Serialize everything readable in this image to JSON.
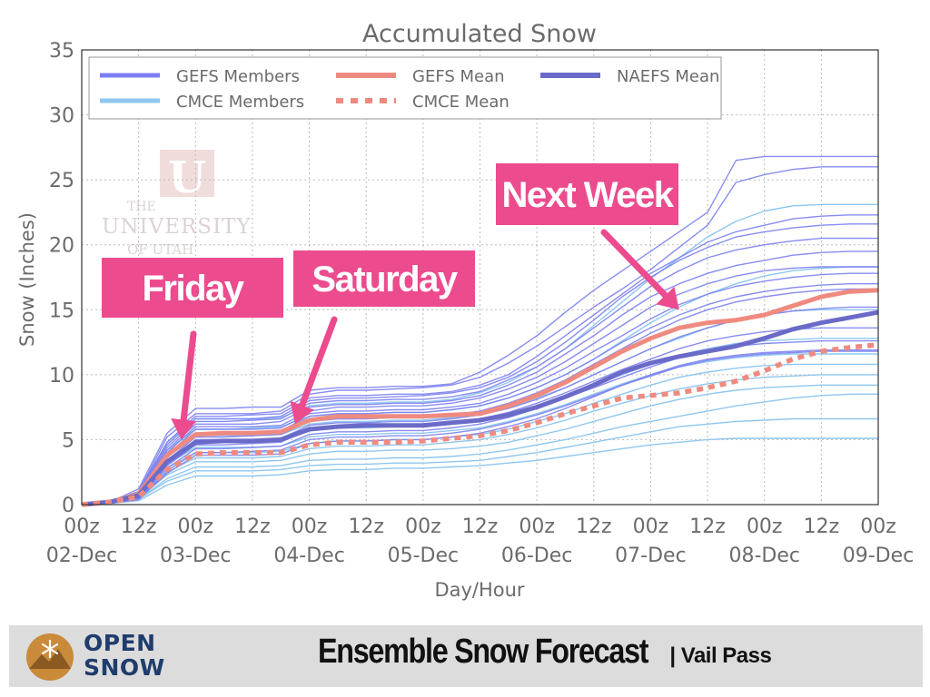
{
  "chart_data": {
    "type": "line",
    "title": "Accumulated Snow",
    "xlabel": "Day/Hour",
    "ylabel": "Snow (Inches)",
    "ylim": [
      0,
      35
    ],
    "yticks": [
      0,
      5,
      10,
      15,
      20,
      25,
      30,
      35
    ],
    "x_tick_hours": [
      "00z",
      "12z",
      "00z",
      "12z",
      "00z",
      "12z",
      "00z",
      "12z",
      "00z",
      "12z",
      "00z",
      "12z",
      "00z",
      "12z",
      "00z"
    ],
    "x_tick_days": [
      "02-Dec",
      "03-Dec",
      "04-Dec",
      "05-Dec",
      "06-Dec",
      "07-Dec",
      "08-Dec",
      "09-Dec"
    ],
    "x_time_hours_start": 0,
    "x_time_hours_end": 168,
    "grid": true,
    "legend_position": "top",
    "legend": [
      {
        "label": "GEFS Members",
        "style": "line",
        "color": "#7b7ff0"
      },
      {
        "label": "GEFS Mean",
        "style": "line",
        "color": "#ef8a80"
      },
      {
        "label": "NAEFS Mean",
        "style": "line",
        "color": "#6a6ac8"
      },
      {
        "label": "CMCE Members",
        "style": "line",
        "color": "#8fc7f0"
      },
      {
        "label": "CMCE Mean",
        "style": "dotted",
        "color": "#ef8a80"
      }
    ],
    "x_hours": [
      0,
      6,
      12,
      18,
      24,
      30,
      36,
      42,
      48,
      54,
      60,
      66,
      72,
      78,
      84,
      90,
      96,
      102,
      108,
      114,
      120,
      126,
      132,
      138,
      144,
      150,
      156,
      162,
      168
    ],
    "series": [
      {
        "name": "GEFS Mean",
        "color": "#ef8a80",
        "style": "solid",
        "values": [
          0,
          0.2,
          0.8,
          3.8,
          5.4,
          5.5,
          5.5,
          5.6,
          6.5,
          6.8,
          6.8,
          6.8,
          6.8,
          6.9,
          7.0,
          7.6,
          8.4,
          9.4,
          10.6,
          11.8,
          12.8,
          13.6,
          14.0,
          14.2,
          14.6,
          15.3,
          16.0,
          16.4,
          16.5
        ]
      },
      {
        "name": "NAEFS Mean",
        "color": "#6a6ac8",
        "style": "solid",
        "values": [
          0,
          0.2,
          0.7,
          3.3,
          4.8,
          4.9,
          4.9,
          5.0,
          5.8,
          6.0,
          6.1,
          6.1,
          6.1,
          6.3,
          6.5,
          6.9,
          7.5,
          8.3,
          9.2,
          10.2,
          10.9,
          11.4,
          11.8,
          12.2,
          12.8,
          13.5,
          14.0,
          14.4,
          14.8
        ]
      },
      {
        "name": "CMCE Mean",
        "color": "#ef8a80",
        "style": "dotted",
        "values": [
          0,
          0.2,
          0.6,
          2.7,
          3.9,
          4.0,
          4.0,
          4.0,
          4.6,
          4.8,
          4.8,
          4.8,
          4.9,
          5.1,
          5.3,
          5.7,
          6.3,
          7.0,
          7.6,
          8.2,
          8.4,
          8.6,
          9.0,
          9.5,
          10.3,
          11.2,
          11.8,
          12.1,
          12.3
        ]
      }
    ],
    "members_gefs": [
      [
        0,
        0.2,
        1.2,
        5.5,
        7.4,
        7.4,
        7.5,
        7.5,
        8.8,
        9.0,
        9.0,
        9.1,
        9.1,
        9.3,
        10.2,
        11.5,
        13.0,
        14.8,
        16.5,
        18.0,
        19.5,
        21.0,
        22.5,
        26.5,
        26.8,
        26.8,
        26.8,
        26.8,
        26.8
      ],
      [
        0,
        0.2,
        1.0,
        5.2,
        7.0,
        7.0,
        7.0,
        7.2,
        8.5,
        8.8,
        8.8,
        8.9,
        9.0,
        9.2,
        9.8,
        10.9,
        12.2,
        13.7,
        15.2,
        16.6,
        18.1,
        19.8,
        21.5,
        24.8,
        25.4,
        25.8,
        26.0,
        26.0,
        26.0
      ],
      [
        0,
        0.2,
        1.0,
        4.8,
        6.8,
        6.8,
        6.9,
        7.0,
        8.2,
        8.4,
        8.4,
        8.5,
        8.5,
        8.7,
        9.2,
        10.0,
        11.4,
        13.0,
        14.6,
        16.2,
        17.8,
        19.0,
        20.2,
        21.0,
        21.5,
        22.0,
        22.2,
        22.3,
        22.3
      ],
      [
        0,
        0.2,
        0.9,
        4.6,
        6.6,
        6.6,
        6.6,
        6.8,
        8.0,
        8.2,
        8.2,
        8.3,
        8.4,
        8.6,
        9.0,
        9.8,
        11.0,
        12.5,
        14.2,
        16.0,
        17.5,
        18.8,
        19.8,
        20.6,
        21.0,
        21.3,
        21.5,
        21.6,
        21.6
      ],
      [
        0,
        0.2,
        0.9,
        4.4,
        6.4,
        6.4,
        6.5,
        6.6,
        7.8,
        8.0,
        8.0,
        8.1,
        8.1,
        8.3,
        8.7,
        9.6,
        10.6,
        12.0,
        13.6,
        15.2,
        16.8,
        18.0,
        19.0,
        19.6,
        20.0,
        20.3,
        20.5,
        20.5,
        20.5
      ],
      [
        0,
        0.2,
        0.8,
        4.2,
        6.2,
        6.2,
        6.2,
        6.4,
        7.5,
        7.7,
        7.7,
        7.8,
        7.8,
        8.0,
        8.4,
        9.2,
        10.2,
        11.6,
        13.0,
        14.6,
        16.0,
        17.0,
        17.8,
        18.4,
        18.8,
        19.2,
        19.4,
        19.5,
        19.5
      ],
      [
        0,
        0.2,
        0.8,
        4.0,
        6.0,
        6.0,
        6.0,
        6.1,
        7.2,
        7.5,
        7.5,
        7.6,
        7.6,
        7.8,
        8.2,
        8.9,
        9.8,
        11.0,
        12.4,
        13.8,
        15.2,
        16.2,
        17.0,
        17.6,
        18.0,
        18.2,
        18.3,
        18.3,
        18.3
      ],
      [
        0,
        0.2,
        0.7,
        3.8,
        5.8,
        5.8,
        5.8,
        5.9,
        7.0,
        7.2,
        7.2,
        7.3,
        7.3,
        7.5,
        7.8,
        8.5,
        9.4,
        10.5,
        11.8,
        13.0,
        14.3,
        15.4,
        16.2,
        16.8,
        17.2,
        17.5,
        17.7,
        17.8,
        17.8
      ],
      [
        0,
        0.2,
        0.7,
        3.6,
        5.5,
        5.5,
        5.6,
        5.7,
        6.8,
        7.0,
        7.0,
        7.1,
        7.1,
        7.3,
        7.6,
        8.2,
        9.0,
        10.0,
        11.2,
        12.5,
        13.6,
        14.6,
        15.4,
        16.0,
        16.4,
        16.7,
        16.9,
        17.0,
        17.0
      ],
      [
        0,
        0.1,
        0.6,
        3.4,
        5.2,
        5.2,
        5.3,
        5.4,
        6.4,
        6.6,
        6.6,
        6.7,
        6.7,
        6.9,
        7.2,
        7.8,
        8.6,
        9.6,
        10.8,
        12.0,
        13.2,
        14.2,
        15.0,
        15.6,
        16.0,
        16.3,
        16.5,
        16.6,
        16.6
      ],
      [
        0,
        0.1,
        0.6,
        3.2,
        5.0,
        5.0,
        5.0,
        5.1,
        6.1,
        6.3,
        6.3,
        6.4,
        6.4,
        6.6,
        6.9,
        7.4,
        8.1,
        9.0,
        10.0,
        11.0,
        12.0,
        12.9,
        13.6,
        14.2,
        14.6,
        14.9,
        15.1,
        15.2,
        15.2
      ],
      [
        0,
        0.1,
        0.5,
        3.0,
        4.6,
        4.6,
        4.7,
        4.8,
        5.8,
        6.0,
        6.0,
        6.1,
        6.1,
        6.3,
        6.6,
        7.1,
        7.8,
        8.6,
        9.5,
        10.4,
        11.2,
        12.0,
        12.6,
        13.0,
        13.3,
        13.5,
        13.6,
        13.6,
        13.6
      ],
      [
        0,
        0.1,
        0.5,
        2.8,
        4.3,
        4.3,
        4.4,
        4.5,
        5.4,
        5.6,
        5.6,
        5.7,
        5.7,
        5.9,
        6.2,
        6.7,
        7.4,
        8.2,
        9.0,
        9.8,
        10.6,
        11.3,
        11.8,
        12.2,
        12.4,
        12.5,
        12.6,
        12.6,
        12.6
      ],
      [
        0,
        0.1,
        0.4,
        2.6,
        4.0,
        4.0,
        4.1,
        4.2,
        5.0,
        5.2,
        5.2,
        5.3,
        5.3,
        5.5,
        5.8,
        6.3,
        6.9,
        7.6,
        8.4,
        9.2,
        9.9,
        10.6,
        11.1,
        11.4,
        11.6,
        11.7,
        11.8,
        11.8,
        11.8
      ],
      [
        0,
        0.1,
        0.4,
        2.4,
        3.8,
        3.8,
        3.8,
        3.9,
        4.7,
        4.9,
        4.9,
        5.0,
        5.0,
        5.2,
        5.5,
        6.0,
        6.6,
        7.4,
        8.3,
        9.2,
        10.0,
        10.7,
        11.2,
        11.5,
        11.7,
        11.8,
        11.9,
        11.9,
        11.9
      ]
    ],
    "members_cmce": [
      [
        0,
        0.2,
        1.0,
        4.8,
        6.6,
        6.6,
        6.6,
        6.7,
        7.6,
        7.8,
        7.8,
        7.9,
        7.9,
        8.1,
        8.6,
        9.4,
        10.6,
        12.0,
        13.8,
        15.6,
        17.4,
        19.0,
        20.6,
        21.8,
        22.6,
        23.0,
        23.1,
        23.1,
        23.1
      ],
      [
        0,
        0.2,
        0.9,
        4.2,
        5.8,
        5.8,
        5.9,
        6.0,
        6.8,
        7.0,
        7.0,
        7.1,
        7.1,
        7.3,
        7.6,
        8.2,
        9.0,
        10.0,
        11.2,
        12.6,
        14.0,
        15.2,
        16.2,
        17.0,
        17.6,
        18.0,
        18.2,
        18.3,
        18.3
      ],
      [
        0,
        0.2,
        0.8,
        3.8,
        5.3,
        5.3,
        5.3,
        5.4,
        6.2,
        6.4,
        6.4,
        6.5,
        6.5,
        6.7,
        7.0,
        7.5,
        8.2,
        9.0,
        10.0,
        11.0,
        12.0,
        12.8,
        13.6,
        14.2,
        14.6,
        14.9,
        15.0,
        15.0,
        15.0
      ],
      [
        0,
        0.1,
        0.7,
        3.4,
        4.8,
        4.8,
        4.9,
        5.0,
        5.7,
        5.9,
        5.9,
        6.0,
        6.0,
        6.2,
        6.5,
        7.0,
        7.6,
        8.4,
        9.2,
        10.0,
        10.8,
        11.5,
        12.0,
        12.4,
        12.6,
        12.7,
        12.8,
        12.8,
        12.8
      ],
      [
        0,
        0.1,
        0.6,
        3.1,
        4.4,
        4.4,
        4.4,
        4.5,
        5.2,
        5.4,
        5.4,
        5.5,
        5.5,
        5.7,
        5.9,
        6.4,
        7.0,
        7.7,
        8.5,
        9.3,
        10.0,
        10.6,
        11.0,
        11.3,
        11.5,
        11.6,
        11.6,
        11.6,
        11.6
      ],
      [
        0,
        0.1,
        0.6,
        2.8,
        4.0,
        4.0,
        4.0,
        4.1,
        4.7,
        4.9,
        4.9,
        5.0,
        5.0,
        5.2,
        5.4,
        5.8,
        6.4,
        7.0,
        7.8,
        8.5,
        9.2,
        9.8,
        10.2,
        10.5,
        10.7,
        10.8,
        10.8,
        10.8,
        10.8
      ],
      [
        0,
        0.1,
        0.5,
        2.5,
        3.6,
        3.6,
        3.6,
        3.7,
        4.3,
        4.5,
        4.5,
        4.6,
        4.6,
        4.8,
        5.0,
        5.4,
        5.9,
        6.5,
        7.2,
        7.8,
        8.4,
        8.9,
        9.3,
        9.6,
        9.8,
        9.9,
        10.0,
        10.0,
        10.0
      ],
      [
        0,
        0.1,
        0.5,
        2.3,
        3.3,
        3.3,
        3.3,
        3.4,
        3.9,
        4.1,
        4.1,
        4.2,
        4.2,
        4.3,
        4.5,
        4.8,
        5.3,
        5.8,
        6.4,
        7.0,
        7.6,
        8.1,
        8.5,
        8.8,
        9.0,
        9.1,
        9.2,
        9.2,
        9.2
      ],
      [
        0,
        0.1,
        0.4,
        2.0,
        2.9,
        2.9,
        2.9,
        3.0,
        3.4,
        3.5,
        3.5,
        3.6,
        3.6,
        3.7,
        3.9,
        4.2,
        4.6,
        5.0,
        5.5,
        6.0,
        6.4,
        6.8,
        7.2,
        7.6,
        7.9,
        8.2,
        8.4,
        8.5,
        8.5
      ],
      [
        0,
        0.1,
        0.4,
        1.8,
        2.6,
        2.6,
        2.6,
        2.7,
        3.0,
        3.1,
        3.1,
        3.2,
        3.2,
        3.3,
        3.4,
        3.7,
        4.0,
        4.4,
        4.8,
        5.2,
        5.6,
        6.0,
        6.2,
        6.4,
        6.5,
        6.6,
        6.6,
        6.6,
        6.6
      ],
      [
        0,
        0.1,
        0.3,
        1.5,
        2.2,
        2.2,
        2.2,
        2.3,
        2.6,
        2.7,
        2.7,
        2.8,
        2.8,
        2.9,
        3.0,
        3.2,
        3.4,
        3.7,
        4.0,
        4.3,
        4.6,
        4.8,
        5.0,
        5.1,
        5.1,
        5.1,
        5.1,
        5.1,
        5.1
      ]
    ],
    "annotations": [
      {
        "text": "Friday",
        "target_hour": 21,
        "target_value": 5.0
      },
      {
        "text": "Saturday",
        "target_hour": 45,
        "target_value": 6.2
      },
      {
        "text": "Next Week",
        "target_hour": 126,
        "target_value": 15.0
      }
    ]
  },
  "watermark": {
    "line1": "THE",
    "line2": "UNIVERSITY",
    "line3": "OF UTAH",
    "mark": "U"
  },
  "footer": {
    "brand_line1": "OPEN",
    "brand_line2": "SNOW",
    "title": "Ensemble Snow Forecast",
    "subtitle": "| Vail Pass",
    "logo_icon": "snowflake-mountain-icon"
  }
}
